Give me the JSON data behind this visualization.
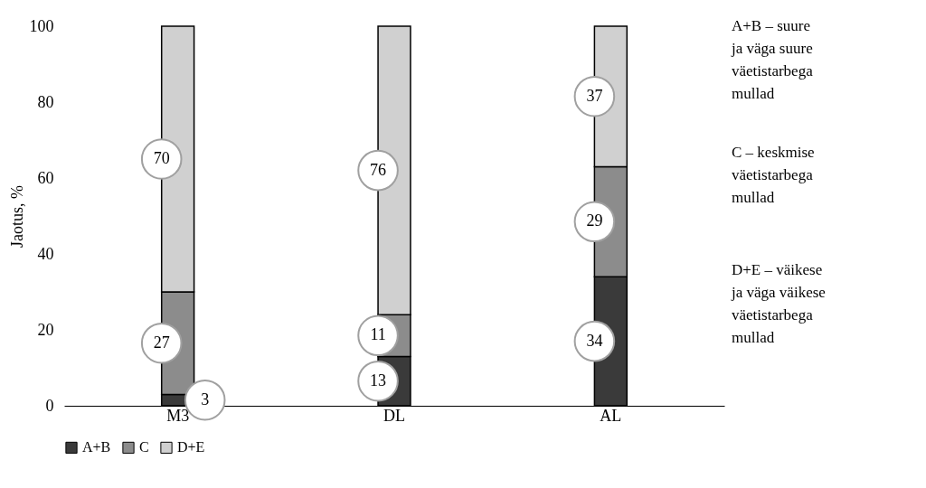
{
  "chart_data": {
    "type": "bar",
    "stacked": true,
    "ylabel": "Jaotus, %",
    "categories": [
      "M3",
      "DL",
      "AL"
    ],
    "series": [
      {
        "name": "A+B",
        "color": "#3a3a3a",
        "values": [
          3,
          13,
          34
        ]
      },
      {
        "name": "C",
        "color": "#8c8c8c",
        "values": [
          27,
          11,
          29
        ]
      },
      {
        "name": "D+E",
        "color": "#d0d0d0",
        "values": [
          70,
          76,
          37
        ]
      }
    ],
    "ylim": [
      0,
      100
    ],
    "yticks": [
      0,
      20,
      40,
      60,
      80,
      100
    ],
    "grid": false,
    "legend": "bottom",
    "data_labels": true,
    "annotations": [
      "A+B – suure\nja väga suure\nväetistarbega\nmullad",
      "C – keskmise\nväetistarbega\nmullad",
      "D+E – väikese\nja väga väikese\nväetistarbega\nmullad"
    ]
  }
}
